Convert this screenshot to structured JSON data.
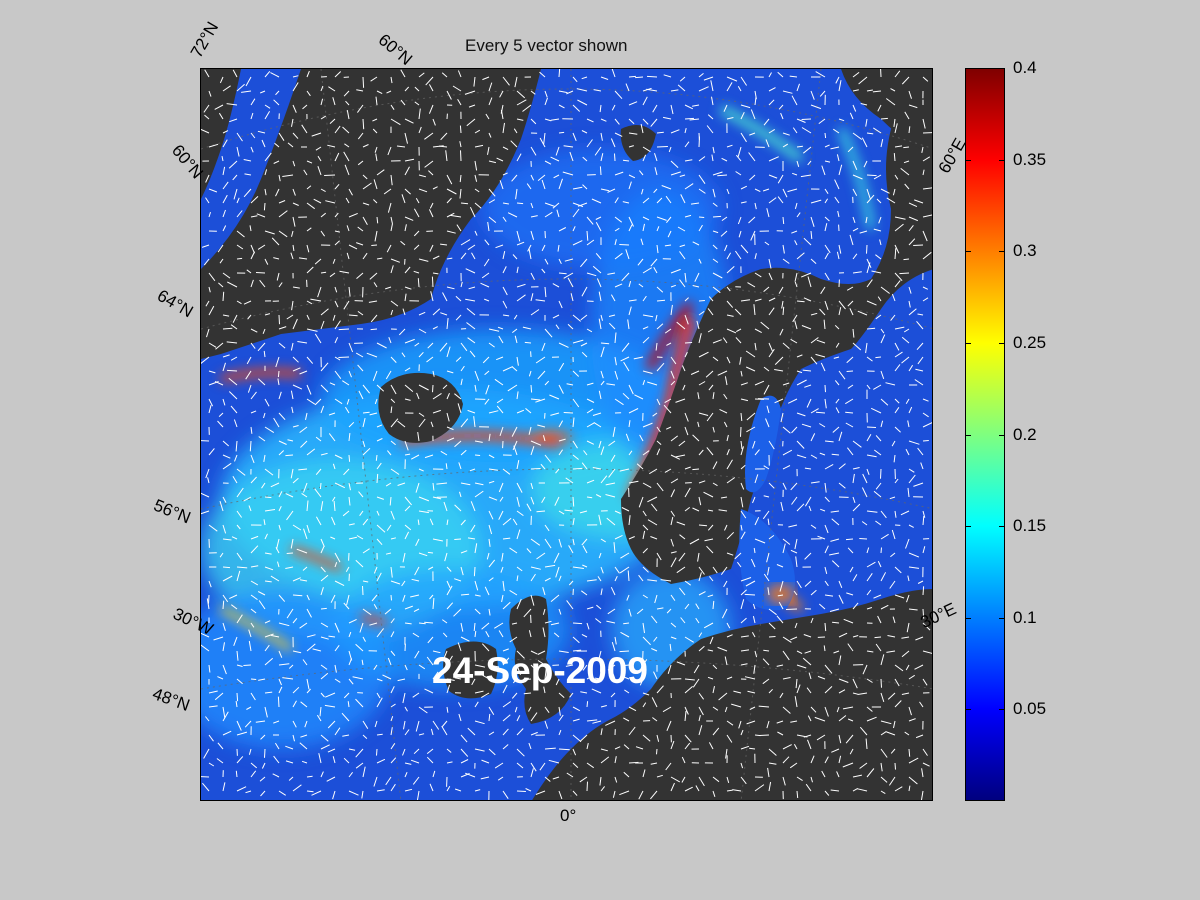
{
  "figure": {
    "title": "Every 5 vector shown",
    "date": "24-Sep-2009"
  },
  "map_labels": {
    "lat_72": "72°N",
    "lon_60w": "60°N",
    "lat_60": "60°N",
    "lat_64": "64°N",
    "lat_56": "56°N",
    "lon_30w": "30°W",
    "lat_48": "48°N",
    "lon_0": "0°",
    "lon_60e": "60°E",
    "lon_30e": "30°E"
  },
  "colorbar": {
    "min": 0,
    "max": 0.4,
    "tick_labels": [
      "0.4",
      "0.35",
      "0.3",
      "0.25",
      "0.2",
      "0.15",
      "0.1",
      "0.05"
    ],
    "tick_values": [
      0.4,
      0.35,
      0.3,
      0.25,
      0.2,
      0.15,
      0.1,
      0.05
    ],
    "colormap": "jet"
  },
  "colors": {
    "land": "#333333",
    "ocean_low": "#1c4fd8",
    "vectors": "#ffffff",
    "background": "#c8c8c8"
  }
}
